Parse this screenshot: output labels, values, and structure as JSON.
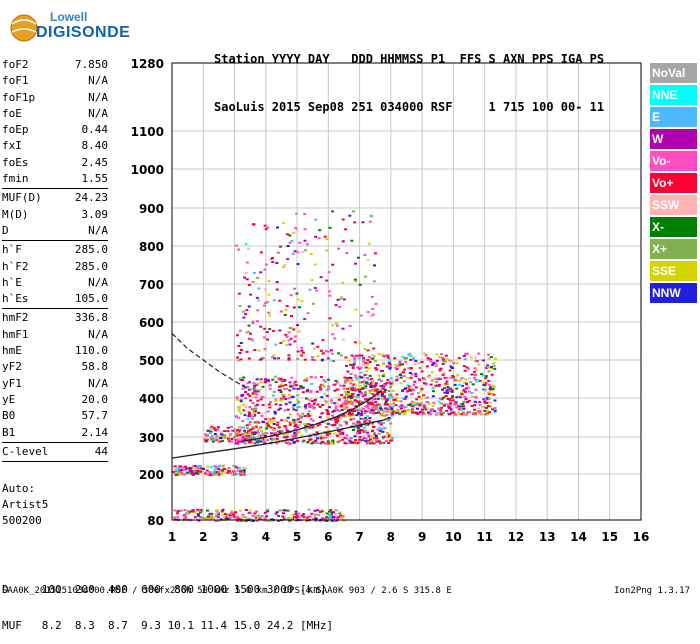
{
  "logo": {
    "line1": "Lowell",
    "line2": "DIGISONDE"
  },
  "header": {
    "row1": "Station YYYY DAY   DDD HHMMSS P1  FFS S AXN PPS IGA PS",
    "row2": "SaoLuis 2015 Sep08 251 034000 RSF     1 715 100 00- 11"
  },
  "params": {
    "group1": [
      {
        "name": "foF2",
        "value": "7.850"
      },
      {
        "name": "foF1",
        "value": "N/A"
      },
      {
        "name": "foF1p",
        "value": "N/A"
      },
      {
        "name": "foE",
        "value": "N/A"
      },
      {
        "name": "foEp",
        "value": "0.44"
      },
      {
        "name": "fxI",
        "value": "8.40"
      },
      {
        "name": "foEs",
        "value": "2.45"
      },
      {
        "name": "fmin",
        "value": "1.55"
      }
    ],
    "group2": [
      {
        "name": "MUF(D)",
        "value": "24.23"
      },
      {
        "name": "M(D)",
        "value": "3.09"
      },
      {
        "name": "D",
        "value": "N/A"
      }
    ],
    "group3": [
      {
        "name": "h`F",
        "value": "285.0"
      },
      {
        "name": "h`F2",
        "value": "285.0"
      },
      {
        "name": "h`E",
        "value": "N/A"
      },
      {
        "name": "h`Es",
        "value": "105.0"
      }
    ],
    "group4": [
      {
        "name": "hmF2",
        "value": "336.8"
      },
      {
        "name": "hmF1",
        "value": "N/A"
      },
      {
        "name": "hmE",
        "value": "110.0"
      },
      {
        "name": "yF2",
        "value": "58.8"
      },
      {
        "name": "yF1",
        "value": "N/A"
      },
      {
        "name": "yE",
        "value": "20.0"
      },
      {
        "name": "B0",
        "value": "57.7"
      },
      {
        "name": "B1",
        "value": "2.14"
      }
    ],
    "group5": [
      {
        "name": "C-level",
        "value": "44"
      }
    ]
  },
  "auto": {
    "line1": "Auto:",
    "line2": "Artist5",
    "line3": "500200"
  },
  "legend": [
    {
      "label": "NoVal",
      "color": "#a6a6a6",
      "text_color": "#ffffff"
    },
    {
      "label": "NNE",
      "color": "#00ffff",
      "text_color": "#ffffff"
    },
    {
      "label": "E",
      "color": "#4db8ff",
      "text_color": "#ffffff"
    },
    {
      "label": "W",
      "color": "#b000b0",
      "text_color": "#ffffff"
    },
    {
      "label": "Vo-",
      "color": "#ff4dc4",
      "text_color": "#ffffff"
    },
    {
      "label": "Vo+",
      "color": "#ff0033",
      "text_color": "#ffffff"
    },
    {
      "label": "SSW",
      "color": "#ffb3b3",
      "text_color": "#ffffff"
    },
    {
      "label": "X-",
      "color": "#008000",
      "text_color": "#ffffff"
    },
    {
      "label": "X+",
      "color": "#80b050",
      "text_color": "#ffffff"
    },
    {
      "label": "SSE",
      "color": "#d4d400",
      "text_color": "#ffffff"
    },
    {
      "label": "NNW",
      "color": "#2020e0",
      "text_color": "#ffffff"
    }
  ],
  "dmuf": {
    "d_row": "D     100  200  400  600  800 1000 1500 3000 [km]",
    "muf_row": "MUF   8.2  8.3  8.7  9.3 10.1 11.4 15.0 24.2 [MHz]"
  },
  "footer": "SAA0K_2015251034000.RSF / 300fx256h 50 kHz 5.0 km / DPS-4 SAA0K 903 / 2.6 S 315.8 E",
  "version": "Ion2Png 1.3.17",
  "chart_data": {
    "type": "scatter",
    "x_ticks": [
      "1",
      "2",
      "3",
      "4",
      "5",
      "6",
      "7",
      "8",
      "9",
      "10",
      "11",
      "12",
      "13",
      "14",
      "15",
      "16"
    ],
    "y_ticks": [
      "80",
      "200",
      "300",
      "400",
      "500",
      "600",
      "700",
      "800",
      "900",
      "1000",
      "1100",
      "1280"
    ],
    "xlim": [
      1,
      16
    ],
    "y_scale": "nonlinear",
    "y_tick_values": [
      80,
      200,
      300,
      400,
      500,
      600,
      700,
      800,
      900,
      1000,
      1100,
      1280
    ],
    "grid": true,
    "legend_placement": "right",
    "profile_solid": {
      "x": [
        1,
        2,
        3,
        4,
        5,
        6,
        7,
        7.85
      ],
      "y": [
        243,
        256,
        268,
        281,
        297,
        313,
        330,
        345
      ]
    },
    "profile_trace": {
      "x": [
        3.3,
        3.8,
        4.3,
        5,
        5.6,
        6.2,
        6.8,
        7.3,
        7.7
      ],
      "y": [
        290,
        296,
        305,
        318,
        333,
        350,
        372,
        395,
        420
      ]
    },
    "profile_dashed": {
      "x": [
        1,
        1.5,
        2,
        2.5,
        3,
        3.5
      ],
      "y": [
        570,
        530,
        500,
        470,
        445,
        420
      ]
    },
    "clusters": [
      {
        "x": [
          3.0,
          8.0
        ],
        "y": [
          285,
          460
        ],
        "n": 900
      },
      {
        "x": [
          6.5,
          11.3
        ],
        "y": [
          360,
          520
        ],
        "n": 700
      },
      {
        "x": [
          2.0,
          4.0
        ],
        "y": [
          290,
          330
        ],
        "n": 120
      },
      {
        "x": [
          1.0,
          3.3
        ],
        "y": [
          200,
          225
        ],
        "n": 160
      },
      {
        "x": [
          1.0,
          6.5
        ],
        "y": [
          80,
          110
        ],
        "n": 260
      },
      {
        "x": [
          3.0,
          7.5
        ],
        "y": [
          500,
          900
        ],
        "n": 260
      }
    ]
  }
}
